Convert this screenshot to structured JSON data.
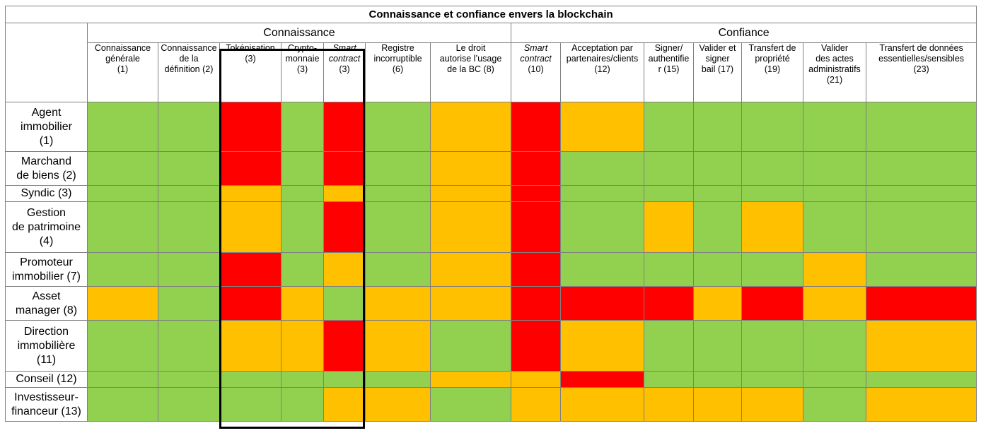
{
  "table": {
    "title": "Connaissance et confiance envers la blockchain",
    "groups": [
      "Connaissance",
      "Confiance"
    ],
    "columns": [
      {
        "lines": [
          "Connaissance",
          "générale",
          "(1)"
        ],
        "italic": false
      },
      {
        "lines": [
          "Connaissance",
          "de la",
          "définition (2)"
        ],
        "italic": false
      },
      {
        "lines": [
          "Tokénisation",
          "(3)"
        ],
        "italic": false
      },
      {
        "lines": [
          "Crypto-",
          "monnaie",
          "(3)"
        ],
        "italic": false
      },
      {
        "lines": [
          "Smart",
          "contract",
          "(3)"
        ],
        "italic": true
      },
      {
        "lines": [
          "Registre",
          "incorruptible",
          "(6)"
        ],
        "italic": false
      },
      {
        "lines": [
          "Le droit",
          "autorise l’usage",
          "de la BC (8)"
        ],
        "italic": false
      },
      {
        "lines": [
          "Smart",
          "contract",
          "(10)"
        ],
        "italic": true
      },
      {
        "lines": [
          "Acceptation par",
          "partenaires/clients",
          "(12)"
        ],
        "italic": false
      },
      {
        "lines": [
          "Signer/",
          "authentifie",
          "r (15)"
        ],
        "italic": false
      },
      {
        "lines": [
          "Valider et",
          "signer",
          "bail (17)"
        ],
        "italic": false
      },
      {
        "lines": [
          "Transfert de",
          "propriété",
          "(19)"
        ],
        "italic": false
      },
      {
        "lines": [
          "Valider",
          "des actes",
          "administratifs",
          "(21)"
        ],
        "italic": false
      },
      {
        "lines": [
          "Transfert de données",
          "essentielles/sensibles",
          "(23)"
        ],
        "italic": false
      }
    ],
    "rows": [
      {
        "label_lines": [
          "Agent",
          "immobilier",
          "(1)"
        ],
        "cells": [
          "G",
          "G",
          "R",
          "G",
          "R",
          "G",
          "O",
          "R",
          "O",
          "G",
          "G",
          "G",
          "G",
          "G"
        ]
      },
      {
        "label_lines": [
          "Marchand",
          "de biens (2)"
        ],
        "cells": [
          "G",
          "G",
          "R",
          "G",
          "R",
          "G",
          "O",
          "R",
          "G",
          "G",
          "G",
          "G",
          "G",
          "G"
        ]
      },
      {
        "label_lines": [
          "Syndic (3)"
        ],
        "cells": [
          "G",
          "G",
          "O",
          "G",
          "O",
          "G",
          "O",
          "R",
          "G",
          "G",
          "G",
          "G",
          "G",
          "G"
        ]
      },
      {
        "label_lines": [
          "Gestion",
          "de patrimoine",
          "(4)"
        ],
        "cells": [
          "G",
          "G",
          "O",
          "G",
          "R",
          "G",
          "O",
          "R",
          "G",
          "O",
          "G",
          "O",
          "G",
          "G"
        ]
      },
      {
        "label_lines": [
          "Promoteur",
          "immobilier (7)"
        ],
        "cells": [
          "G",
          "G",
          "R",
          "G",
          "O",
          "G",
          "O",
          "R",
          "G",
          "G",
          "G",
          "G",
          "O",
          "G"
        ]
      },
      {
        "label_lines": [
          "Asset",
          "manager (8)"
        ],
        "cells": [
          "O",
          "G",
          "R",
          "O",
          "G",
          "O",
          "O",
          "R",
          "R",
          "R",
          "O",
          "R",
          "O",
          "R"
        ]
      },
      {
        "label_lines": [
          "Direction",
          "immobilière",
          "(11)"
        ],
        "cells": [
          "G",
          "G",
          "O",
          "O",
          "R",
          "O",
          "G",
          "R",
          "O",
          "G",
          "G",
          "G",
          "G",
          "O"
        ]
      },
      {
        "label_lines": [
          "Conseil (12)"
        ],
        "cells": [
          "G",
          "G",
          "G",
          "G",
          "G",
          "G",
          "O",
          "O",
          "R",
          "G",
          "G",
          "G",
          "G",
          "G"
        ]
      },
      {
        "label_lines": [
          "Investisseur-",
          "financeur (13)"
        ],
        "cells": [
          "G",
          "G",
          "G",
          "G",
          "O",
          "O",
          "G",
          "O",
          "O",
          "O",
          "O",
          "O",
          "G",
          "O"
        ]
      }
    ],
    "legend_colors": {
      "G": "#92d050",
      "O": "#ffc000",
      "R": "#ff0000"
    }
  }
}
